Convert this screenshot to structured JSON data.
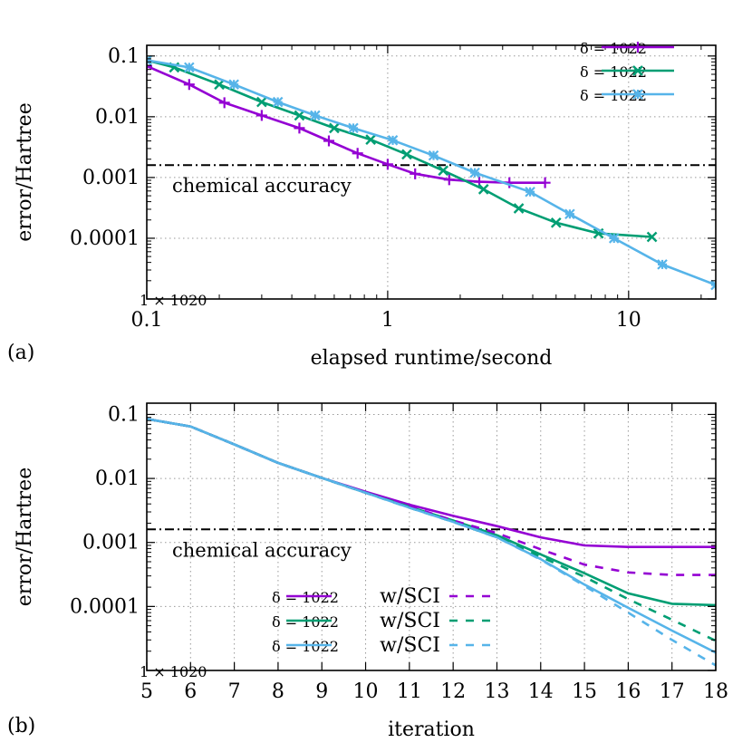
{
  "panel_labels": [
    "(a)",
    "(b)"
  ],
  "chart_data": [
    {
      "type": "line",
      "panel": "(a)",
      "xlabel": "elapsed runtime/second",
      "ylabel": "error/Hartree",
      "xscale": "log",
      "yscale": "log",
      "xlim": [
        0.1,
        23
      ],
      "ylim": [
        1e-05,
        0.15
      ],
      "grid": true,
      "legend_placement": "top-right",
      "x_ticks": [
        0.1,
        1,
        10
      ],
      "x_tick_labels": [
        "0.1",
        "1",
        "10"
      ],
      "y_ticks": [
        0.1,
        0.01,
        0.001,
        0.0001,
        1e-05
      ],
      "y_tick_labels": [
        "0.1",
        "0.01",
        "0.001",
        "0.0001",
        "1 × 10"
      ],
      "y_tick_label_exponent": "−5",
      "reference_line": {
        "y": 0.0016,
        "label": "chemical accuracy"
      },
      "series": [
        {
          "name": "δ = 10",
          "exponent": "−5",
          "color": "#9400d3",
          "marker": "plus",
          "x": [
            0.1,
            0.15,
            0.21,
            0.3,
            0.43,
            0.57,
            0.75,
            1.0,
            1.3,
            1.8,
            2.4,
            3.2,
            4.5
          ],
          "y": [
            0.068,
            0.034,
            0.017,
            0.0105,
            0.0065,
            0.004,
            0.0025,
            0.00165,
            0.00115,
            0.00092,
            0.00085,
            0.00082,
            0.00082
          ]
        },
        {
          "name": "δ = 10",
          "exponent": "−6",
          "color": "#009e73",
          "marker": "cross",
          "x": [
            0.1,
            0.13,
            0.2,
            0.3,
            0.43,
            0.6,
            0.85,
            1.2,
            1.7,
            2.5,
            3.5,
            5.0,
            7.5,
            12.5
          ],
          "y": [
            0.085,
            0.065,
            0.034,
            0.0175,
            0.0105,
            0.0065,
            0.0042,
            0.0024,
            0.0013,
            0.00064,
            0.00031,
            0.00018,
            0.00012,
            0.000105
          ]
        },
        {
          "name": "δ = 10",
          "exponent": "−7",
          "color": "#56b4e9",
          "marker": "box",
          "x": [
            0.1,
            0.15,
            0.23,
            0.35,
            0.5,
            0.72,
            1.05,
            1.55,
            2.3,
            3.9,
            5.7,
            8.7,
            13.8,
            23
          ],
          "y": [
            0.085,
            0.065,
            0.034,
            0.0175,
            0.0105,
            0.0065,
            0.0041,
            0.0023,
            0.0012,
            0.00058,
            0.00025,
            0.0001,
            3.7e-05,
            1.7e-05
          ]
        }
      ]
    },
    {
      "type": "line",
      "panel": "(b)",
      "xlabel": "iteration",
      "ylabel": "error/Hartree",
      "yscale": "log",
      "xlim": [
        5,
        18
      ],
      "ylim": [
        1e-05,
        0.15
      ],
      "grid": true,
      "legend_placement": "bottom-left",
      "x_ticks": [
        5,
        6,
        7,
        8,
        9,
        10,
        11,
        12,
        13,
        14,
        15,
        16,
        17,
        18
      ],
      "y_ticks": [
        0.1,
        0.01,
        0.001,
        0.0001,
        1e-05
      ],
      "y_tick_labels": [
        "0.1",
        "0.01",
        "0.001",
        "0.0001",
        "1 × 10"
      ],
      "y_tick_label_exponent": "−5",
      "reference_line": {
        "y": 0.0016,
        "label": "chemical accuracy"
      },
      "x": [
        5,
        6,
        7,
        8,
        9,
        10,
        11,
        12,
        13,
        14,
        15,
        16,
        17,
        18
      ],
      "series": [
        {
          "name": "δ = 10",
          "exponent": "−5",
          "color": "#9400d3",
          "dash": "solid",
          "y": [
            0.085,
            0.065,
            0.034,
            0.0175,
            0.0102,
            0.0062,
            0.0039,
            0.0026,
            0.0018,
            0.0012,
            0.0009,
            0.00085,
            0.00085,
            0.00085
          ]
        },
        {
          "name": "δ = 10",
          "exponent": "−6",
          "color": "#009e73",
          "dash": "solid",
          "y": [
            0.085,
            0.065,
            0.034,
            0.0175,
            0.0102,
            0.006,
            0.0036,
            0.0022,
            0.0013,
            0.00065,
            0.00033,
            0.00016,
            0.00011,
            0.000105
          ]
        },
        {
          "name": "δ = 10",
          "exponent": "−7",
          "color": "#56b4e9",
          "dash": "solid",
          "y": [
            0.085,
            0.065,
            0.034,
            0.0175,
            0.0102,
            0.006,
            0.0035,
            0.0021,
            0.0012,
            0.00055,
            0.00022,
            9.5e-05,
            4.2e-05,
            1.9e-05
          ]
        },
        {
          "name": "w/SCI",
          "color": "#9400d3",
          "dash": "dashed",
          "y": [
            0.085,
            0.065,
            0.034,
            0.0175,
            0.0102,
            0.006,
            0.0037,
            0.0022,
            0.0014,
            0.00078,
            0.00045,
            0.00034,
            0.00031,
            0.00031
          ]
        },
        {
          "name": "w/SCI",
          "color": "#009e73",
          "dash": "dashed",
          "y": [
            0.085,
            0.065,
            0.034,
            0.0175,
            0.0102,
            0.006,
            0.0035,
            0.0021,
            0.0012,
            0.0006,
            0.00029,
            0.00013,
            6.2e-05,
            2.9e-05
          ]
        },
        {
          "name": "w/SCI",
          "color": "#56b4e9",
          "dash": "dashed",
          "y": [
            0.085,
            0.065,
            0.034,
            0.0175,
            0.0102,
            0.006,
            0.0035,
            0.0021,
            0.0012,
            0.00054,
            0.00021,
            8e-05,
            3e-05,
            1.2e-05
          ]
        }
      ]
    }
  ]
}
